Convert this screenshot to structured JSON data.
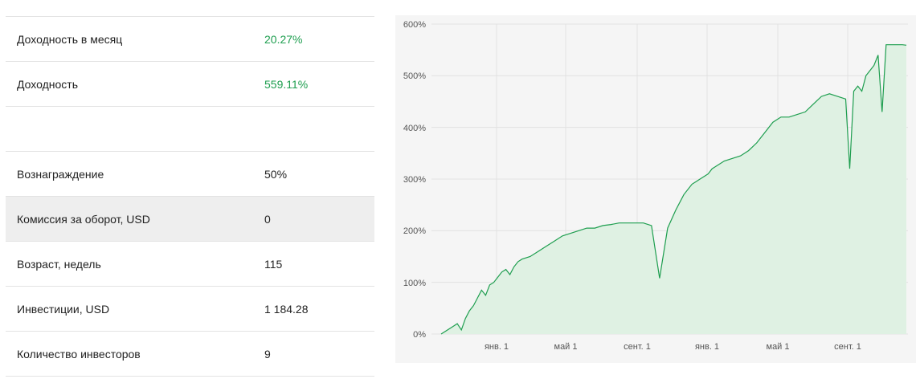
{
  "stats": [
    {
      "label": "Доходность в месяц",
      "value": "20.27%",
      "green": true
    },
    {
      "label": "Доходность",
      "value": "559.11%",
      "green": true
    },
    {
      "label": "",
      "value": "",
      "green": false
    },
    {
      "label": "Вознаграждение",
      "value": "50%",
      "green": false
    },
    {
      "label": "Комиссия за оборот, USD",
      "value": "0",
      "green": false,
      "highlight": true
    },
    {
      "label": "Возраст, недель",
      "value": "115",
      "green": false
    },
    {
      "label": "Инвестиции, USD",
      "value": "1 184.28",
      "green": false
    },
    {
      "label": "Количество инвесторов",
      "value": "9",
      "green": false
    }
  ],
  "chart_data": {
    "type": "area",
    "title": "",
    "xlabel": "",
    "ylabel": "",
    "x_ticks": [
      "янв. 1",
      "май 1",
      "сент. 1",
      "янв. 1",
      "май 1",
      "сент. 1"
    ],
    "y_ticks": [
      "0%",
      "100%",
      "200%",
      "300%",
      "400%",
      "500%",
      "600%"
    ],
    "ylim": [
      0,
      600
    ],
    "grid": true,
    "colors": {
      "line": "#1e9e4f",
      "fill": "#dff1e3"
    },
    "x_weeks": [
      0,
      3,
      4,
      5,
      6,
      7,
      8,
      9,
      10,
      11,
      12,
      13,
      14,
      15,
      16,
      17,
      18,
      19,
      20,
      22,
      24,
      26,
      28,
      30,
      32,
      34,
      36,
      38,
      40,
      42,
      44,
      46,
      48,
      50,
      52,
      54,
      56,
      58,
      60,
      62,
      63,
      64,
      65,
      66,
      67,
      68,
      70,
      72,
      74,
      76,
      78,
      80,
      82,
      84,
      86,
      88,
      90,
      92,
      94,
      96,
      98,
      100,
      101,
      102,
      103,
      104,
      105,
      106,
      107,
      108,
      109,
      110,
      111,
      112,
      113,
      114,
      115
    ],
    "values": [
      0,
      15,
      20,
      8,
      30,
      45,
      55,
      70,
      85,
      75,
      95,
      100,
      110,
      120,
      125,
      115,
      130,
      140,
      145,
      150,
      160,
      170,
      180,
      190,
      195,
      200,
      205,
      205,
      210,
      212,
      215,
      215,
      215,
      215,
      210,
      108,
      205,
      240,
      270,
      290,
      295,
      300,
      305,
      310,
      320,
      325,
      335,
      340,
      345,
      355,
      370,
      390,
      410,
      420,
      420,
      425,
      430,
      445,
      460,
      465,
      460,
      455,
      320,
      470,
      480,
      470,
      500,
      510,
      520,
      540,
      430,
      560,
      560,
      560,
      560,
      560,
      559.11
    ]
  }
}
